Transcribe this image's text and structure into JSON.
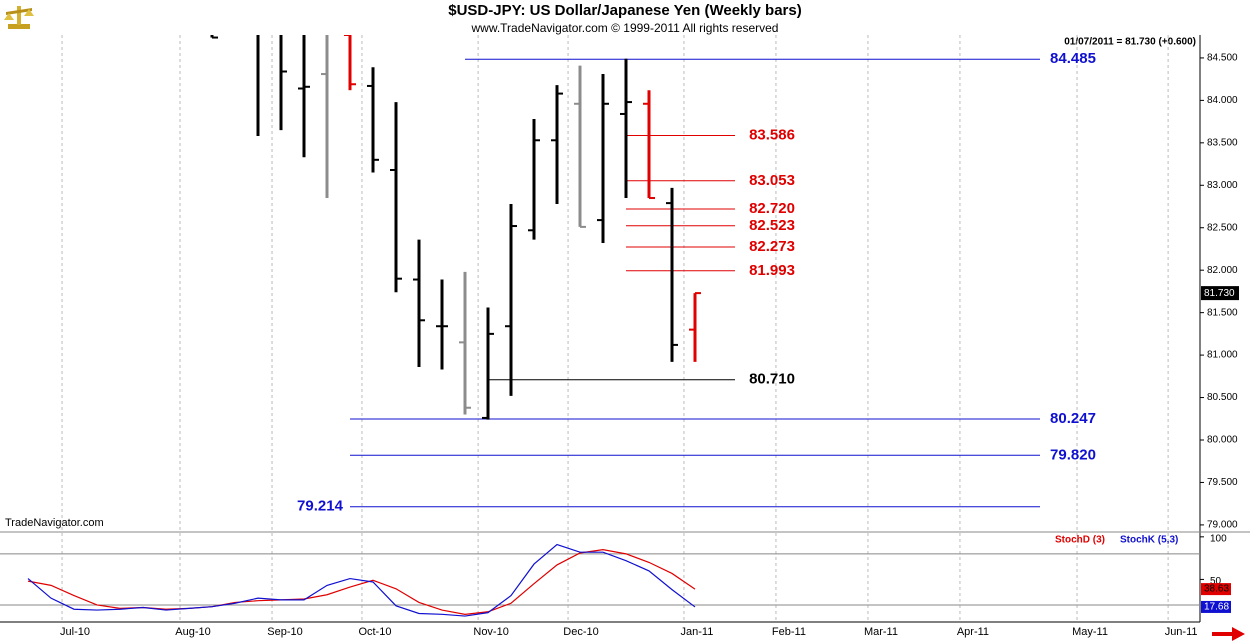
{
  "chart_data": [
    {
      "type": "ohlc",
      "title": "$USD-JPY:  US Dollar/Japanese Yen  (Weekly bars)",
      "subtitle": "www.TradeNavigator.com © 1999-2011 All rights reserved",
      "annotation": "01/07/2011 = 81.730 (+0.600)",
      "watermark": "TradeNavigator.com",
      "last_label": "81.730",
      "categories": [
        null,
        null,
        null,
        null,
        null,
        null,
        null,
        null,
        null,
        null,
        null,
        null,
        null,
        null,
        null,
        null,
        null,
        null,
        null,
        null,
        null,
        null,
        null,
        null,
        null,
        null,
        null,
        null,
        null,
        null,
        null,
        null,
        null,
        null,
        null,
        null,
        null,
        null,
        null,
        null,
        null,
        null,
        null,
        null,
        null,
        null,
        null,
        null,
        null,
        null,
        null,
        null
      ],
      "open": [
        null,
        null,
        null,
        null,
        null,
        null,
        null,
        null,
        null,
        null,
        null,
        null,
        null,
        84.14,
        84.31,
        84.77,
        84.17,
        83.18,
        81.89,
        81.34,
        81.15,
        80.26,
        81.34,
        82.47,
        83.53,
        83.96,
        82.59,
        83.84,
        83.96,
        82.79,
        81.3,
        null,
        null,
        null,
        null,
        null,
        null,
        null,
        null,
        null,
        null,
        null,
        null,
        null,
        null,
        null,
        null,
        null,
        null,
        null,
        null,
        null
      ],
      "high": [
        null,
        null,
        null,
        null,
        null,
        null,
        null,
        null,
        null,
        84.77,
        null,
        84.77,
        84.77,
        84.77,
        84.77,
        84.77,
        84.39,
        83.98,
        82.36,
        81.89,
        81.98,
        81.56,
        82.78,
        83.78,
        84.18,
        84.41,
        84.31,
        84.49,
        84.12,
        82.97,
        81.73,
        null,
        null,
        null,
        null,
        null,
        null,
        null,
        null,
        null,
        null,
        null,
        null,
        null,
        null,
        null,
        null,
        null,
        null,
        null,
        null,
        null
      ],
      "low": [
        null,
        null,
        null,
        null,
        null,
        null,
        null,
        null,
        null,
        84.74,
        null,
        83.58,
        83.65,
        83.33,
        82.85,
        84.12,
        83.15,
        81.74,
        80.86,
        80.83,
        80.3,
        80.24,
        80.52,
        82.36,
        82.78,
        82.51,
        82.32,
        82.85,
        82.85,
        80.92,
        80.92,
        null,
        null,
        null,
        null,
        null,
        null,
        null,
        null,
        null,
        null,
        null,
        null,
        null,
        null,
        null,
        null,
        null,
        null,
        null,
        null,
        null
      ],
      "close": [
        null,
        null,
        null,
        null,
        null,
        null,
        null,
        null,
        null,
        84.74,
        null,
        null,
        84.34,
        84.16,
        null,
        84.19,
        83.3,
        81.9,
        81.41,
        81.34,
        80.38,
        81.25,
        82.52,
        83.53,
        84.08,
        82.51,
        83.96,
        83.98,
        82.85,
        81.12,
        81.73,
        null,
        null,
        null,
        null,
        null,
        null,
        null,
        null,
        null,
        null,
        null,
        null,
        null,
        null,
        null,
        null,
        null,
        null,
        null,
        null,
        null
      ],
      "colors": [
        null,
        null,
        null,
        null,
        null,
        null,
        null,
        null,
        null,
        "#000000",
        null,
        "#000000",
        "#000000",
        "#000000",
        "#8c8c8c",
        "#e00000",
        "#000000",
        "#000000",
        "#000000",
        "#000000",
        "#8c8c8c",
        "#000000",
        "#000000",
        "#000000",
        "#000000",
        "#8c8c8c",
        "#000000",
        "#000000",
        "#e00000",
        "#000000",
        "#e00000",
        null,
        null,
        null,
        null,
        null,
        null,
        null,
        null,
        null,
        null,
        null,
        null,
        null,
        null,
        null,
        null,
        null,
        null,
        null,
        null,
        null
      ],
      "ylim": [
        78.94,
        84.77
      ],
      "yticks": [
        {
          "value": 79,
          "label": "79.000"
        },
        {
          "value": 79.5,
          "label": "79.500"
        },
        {
          "value": 80,
          "label": "80.000"
        },
        {
          "value": 80.5,
          "label": "80.500"
        },
        {
          "value": 81,
          "label": "81.000"
        },
        {
          "value": 81.5,
          "label": "81.500"
        },
        {
          "value": 82,
          "label": "82.000"
        },
        {
          "value": 82.5,
          "label": "82.500"
        },
        {
          "value": 83,
          "label": "83.000"
        },
        {
          "value": 83.5,
          "label": "83.500"
        },
        {
          "value": 84,
          "label": "84.000"
        },
        {
          "value": 84.5,
          "label": "84.500"
        }
      ],
      "xticks": [
        {
          "value": 2.48,
          "label": "Jul-10"
        },
        {
          "value": 7.61,
          "label": "Aug-10"
        },
        {
          "value": 11.61,
          "label": "Sep-10"
        },
        {
          "value": 15.52,
          "label": "Oct-10"
        },
        {
          "value": 20.57,
          "label": "Nov-10"
        },
        {
          "value": 24.48,
          "label": "Dec-10"
        },
        {
          "value": 29.52,
          "label": "Jan-11"
        },
        {
          "value": 33.52,
          "label": "Feb-11"
        },
        {
          "value": 37.52,
          "label": "Mar-11"
        },
        {
          "value": 41.52,
          "label": "Apr-11"
        },
        {
          "value": 46.61,
          "label": "May-11"
        },
        {
          "value": 50.57,
          "label": "Jun-11"
        }
      ],
      "grid": true,
      "levels": [
        {
          "value": 84.485,
          "label": "84.485",
          "color": "#1010d0",
          "start": 20,
          "end": 45,
          "label_side": "right"
        },
        {
          "value": 83.586,
          "label": "83.586",
          "color": "#e00000",
          "start": 27,
          "end": 31.74,
          "label_side": "right"
        },
        {
          "value": 83.053,
          "label": "83.053",
          "color": "#e00000",
          "start": 27,
          "end": 31.74,
          "label_side": "right"
        },
        {
          "value": 82.72,
          "label": "82.720",
          "color": "#e00000",
          "start": 27,
          "end": 31.74,
          "label_side": "right"
        },
        {
          "value": 82.523,
          "label": "82.523",
          "color": "#e00000",
          "start": 27,
          "end": 31.74,
          "label_side": "right"
        },
        {
          "value": 82.273,
          "label": "82.273",
          "color": "#e00000",
          "start": 27,
          "end": 31.74,
          "label_side": "right"
        },
        {
          "value": 81.993,
          "label": "81.993",
          "color": "#e00000",
          "start": 27,
          "end": 31.74,
          "label_side": "right"
        },
        {
          "value": 80.71,
          "label": "80.710",
          "color": "#000000",
          "start": 21,
          "end": 31.74,
          "label_side": "right"
        },
        {
          "value": 80.247,
          "label": "80.247",
          "color": "#1010d0",
          "start": 15,
          "end": 45,
          "label_side": "right"
        },
        {
          "value": 79.82,
          "label": "79.820",
          "color": "#1010d0",
          "start": 15,
          "end": 45,
          "label_side": "right"
        },
        {
          "value": 79.214,
          "label": "79.214",
          "color": "#1010d0",
          "start": 15,
          "end": 45,
          "label_side": "left"
        }
      ]
    },
    {
      "type": "line",
      "categories": [
        null,
        null,
        null,
        null,
        null,
        null,
        null,
        null,
        null,
        null,
        null,
        null,
        null,
        null,
        null,
        null,
        null,
        null,
        null,
        null,
        null,
        null,
        null,
        null,
        null,
        null,
        null,
        null,
        null,
        null,
        null,
        null,
        null,
        null,
        null,
        null,
        null,
        null,
        null,
        null,
        null,
        null,
        null,
        null,
        null,
        null,
        null,
        null,
        null,
        null,
        null,
        null
      ],
      "series": [
        {
          "name": "StochD (3)",
          "color": "#e00000",
          "values": [
            null,
            48,
            43,
            31,
            20,
            16,
            17,
            15,
            16,
            18,
            23,
            25,
            26,
            27,
            32,
            41,
            49,
            39,
            23,
            14,
            9,
            12,
            22,
            45,
            67,
            81,
            85,
            80,
            70,
            57,
            38.63,
            null,
            null,
            null,
            null,
            null,
            null,
            null,
            null,
            null,
            null,
            null,
            null,
            null,
            null,
            null,
            null,
            null,
            null,
            null,
            null,
            null
          ]
        },
        {
          "name": "StochK (5,3)",
          "color": "#1010d0",
          "values": [
            null,
            51,
            28,
            15,
            14,
            15,
            17,
            14,
            16,
            18,
            22,
            28,
            26,
            26,
            43,
            51,
            47,
            19,
            10,
            9,
            7,
            11,
            31,
            68,
            91,
            82,
            82,
            72,
            60,
            38,
            17.68,
            null,
            null,
            null,
            null,
            null,
            null,
            null,
            null,
            null,
            null,
            null,
            null,
            null,
            null,
            null,
            null,
            null,
            null,
            null,
            null,
            null
          ]
        }
      ],
      "ylim": [
        0,
        104.5
      ],
      "yticks": [
        50,
        100
      ],
      "bands": [
        80,
        20
      ]
    }
  ]
}
